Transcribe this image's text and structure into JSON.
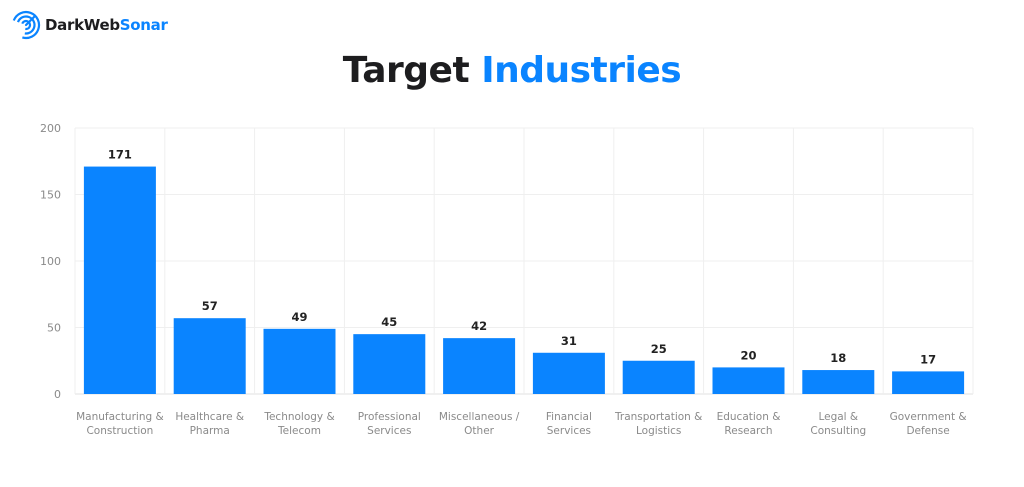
{
  "brand": {
    "name_part1": "DarkWeb",
    "name_part2": "Sonar",
    "icon": "radar-icon",
    "accent_color": "#0a84ff"
  },
  "title": {
    "part1": "Target",
    "part2": "Industries"
  },
  "chart_data": {
    "type": "bar",
    "title": "Target Industries",
    "xlabel": "",
    "ylabel": "",
    "ylim": [
      0,
      200
    ],
    "yticks": [
      0,
      50,
      100,
      150,
      200
    ],
    "grid": true,
    "bar_color": "#0a84ff",
    "categories": [
      [
        "Manufacturing &",
        "Construction"
      ],
      [
        "Healthcare &",
        "Pharma"
      ],
      [
        "Technology &",
        "Telecom"
      ],
      [
        "Professional",
        "Services"
      ],
      [
        "Miscellaneous /",
        "Other"
      ],
      [
        "Financial",
        "Services"
      ],
      [
        "Transportation &",
        "Logistics"
      ],
      [
        "Education &",
        "Research"
      ],
      [
        "Legal &",
        "Consulting"
      ],
      [
        "Government &",
        "Defense"
      ]
    ],
    "values": [
      171,
      57,
      49,
      45,
      42,
      31,
      25,
      20,
      18,
      17
    ]
  }
}
